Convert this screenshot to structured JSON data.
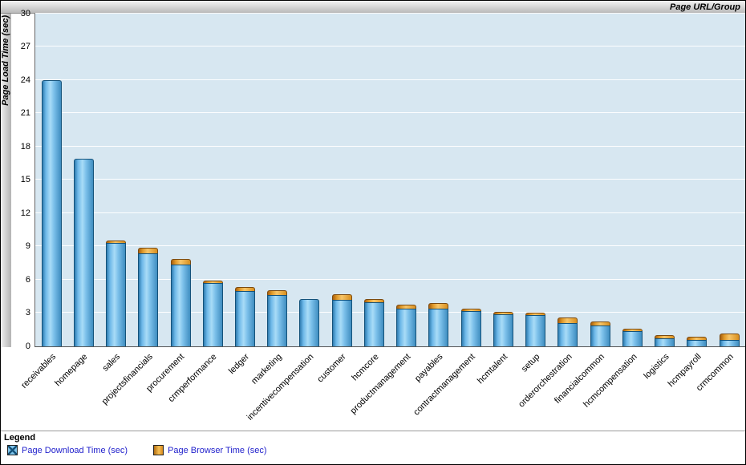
{
  "header": {
    "title": "Page URL/Group"
  },
  "y_axis": {
    "label": "Page Load Time (sec)"
  },
  "legend": {
    "title": "Legend",
    "items": [
      {
        "label": "Page Download Time (sec)",
        "style": "cross"
      },
      {
        "label": "Page Browser Time (sec)",
        "style": "plain"
      }
    ]
  },
  "colors": {
    "download": "#5aa7d8",
    "browser": "#e8a33d",
    "plot_bg": "#d7e7f1",
    "grid": "#ffffff",
    "legend_text": "#2222cc"
  },
  "chart_data": {
    "type": "bar",
    "stacked": true,
    "title": "",
    "xlabel": "Page URL/Group",
    "ylabel": "Page Load Time (sec)",
    "ylim": [
      0,
      30
    ],
    "ytick_step": 3,
    "grid": true,
    "legend_position": "bottom",
    "categories": [
      "receivables",
      "homepage",
      "sales",
      "projectsfinancials",
      "procurement",
      "crmperformance",
      "ledger",
      "marketing",
      "incentivecompensation",
      "customer",
      "hcmcore",
      "productmanagement",
      "payables",
      "contractmanagement",
      "hcmtalent",
      "setup",
      "orderorchestration",
      "financialcommon",
      "hcmcompensation",
      "logistics",
      "hcmpayroll",
      "crmcommon"
    ],
    "series": [
      {
        "name": "Page Download Time (sec)",
        "values": [
          24.0,
          16.9,
          9.3,
          8.4,
          7.4,
          5.7,
          5.0,
          4.6,
          4.3,
          4.2,
          4.0,
          3.4,
          3.4,
          3.2,
          2.9,
          2.8,
          2.1,
          1.9,
          1.35,
          0.7,
          0.6,
          0.6
        ]
      },
      {
        "name": "Page Browser Time (sec)",
        "values": [
          0.0,
          0.0,
          0.2,
          0.5,
          0.5,
          0.2,
          0.35,
          0.4,
          0.0,
          0.5,
          0.3,
          0.35,
          0.5,
          0.25,
          0.25,
          0.25,
          0.5,
          0.35,
          0.25,
          0.3,
          0.3,
          0.55
        ]
      }
    ]
  }
}
